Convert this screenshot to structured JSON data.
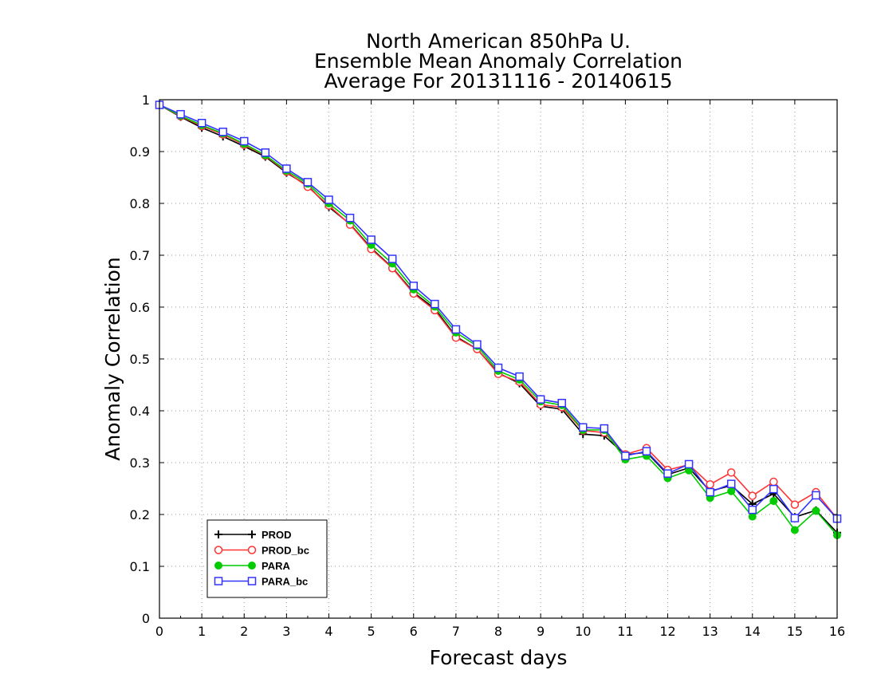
{
  "chart_data": {
    "type": "line",
    "title": [
      "North American 850hPa U.",
      "Ensemble Mean Anomaly Correlation",
      "Average For 20131116 - 20140615"
    ],
    "xlabel": "Forecast days",
    "ylabel": "Anomaly Correlation",
    "xlim": [
      0,
      16
    ],
    "ylim": [
      0,
      1
    ],
    "xticks": [
      0,
      1,
      2,
      3,
      4,
      5,
      6,
      7,
      8,
      9,
      10,
      11,
      12,
      13,
      14,
      15,
      16
    ],
    "yticks": [
      0,
      0.1,
      0.2,
      0.3,
      0.4,
      0.5,
      0.6,
      0.7,
      0.8,
      0.9,
      1
    ],
    "ytick_labels": [
      "0",
      "0.1",
      "0.2",
      "0.3",
      "0.4",
      "0.5",
      "0.6",
      "0.7",
      "0.8",
      "0.9",
      "1"
    ],
    "grid": true,
    "legend_position": "bottom-left",
    "x": [
      0,
      0.5,
      1,
      1.5,
      2,
      2.5,
      3,
      3.5,
      4,
      4.5,
      5,
      5.5,
      6,
      6.5,
      7,
      7.5,
      8,
      8.5,
      9,
      9.5,
      10,
      10.5,
      11,
      11.5,
      12,
      12.5,
      13,
      13.5,
      14,
      14.5,
      15,
      15.5,
      16
    ],
    "series": [
      {
        "name": "PROD",
        "color": "#000000",
        "marker": "plus",
        "values": [
          0.99,
          0.967,
          0.946,
          0.929,
          0.91,
          0.89,
          0.859,
          0.834,
          0.793,
          0.76,
          0.714,
          0.676,
          0.628,
          0.597,
          0.543,
          0.519,
          0.473,
          0.453,
          0.409,
          0.403,
          0.355,
          0.352,
          0.315,
          0.32,
          0.277,
          0.29,
          0.245,
          0.256,
          0.22,
          0.24,
          0.195,
          0.208,
          0.165
        ]
      },
      {
        "name": "PROD_bc",
        "color": "#ff3333",
        "marker": "circle",
        "values": [
          0.99,
          0.968,
          0.949,
          0.933,
          0.913,
          0.892,
          0.861,
          0.832,
          0.796,
          0.759,
          0.712,
          0.675,
          0.626,
          0.594,
          0.541,
          0.519,
          0.471,
          0.456,
          0.412,
          0.407,
          0.362,
          0.358,
          0.316,
          0.328,
          0.286,
          0.296,
          0.258,
          0.281,
          0.236,
          0.263,
          0.219,
          0.243,
          0.192
        ]
      },
      {
        "name": "PARA",
        "color": "#00cc00",
        "marker": "dot",
        "values": [
          0.99,
          0.969,
          0.951,
          0.935,
          0.915,
          0.893,
          0.863,
          0.838,
          0.8,
          0.767,
          0.72,
          0.684,
          0.634,
          0.601,
          0.551,
          0.525,
          0.477,
          0.46,
          0.418,
          0.411,
          0.363,
          0.363,
          0.306,
          0.313,
          0.27,
          0.285,
          0.232,
          0.245,
          0.196,
          0.226,
          0.17,
          0.207,
          0.16
        ]
      },
      {
        "name": "PARA_bc",
        "color": "#3333ff",
        "marker": "square",
        "values": [
          0.99,
          0.972,
          0.955,
          0.938,
          0.92,
          0.898,
          0.867,
          0.841,
          0.807,
          0.772,
          0.73,
          0.693,
          0.641,
          0.606,
          0.557,
          0.528,
          0.483,
          0.466,
          0.422,
          0.415,
          0.368,
          0.366,
          0.313,
          0.322,
          0.279,
          0.297,
          0.243,
          0.259,
          0.209,
          0.249,
          0.193,
          0.237,
          0.192
        ]
      }
    ]
  }
}
